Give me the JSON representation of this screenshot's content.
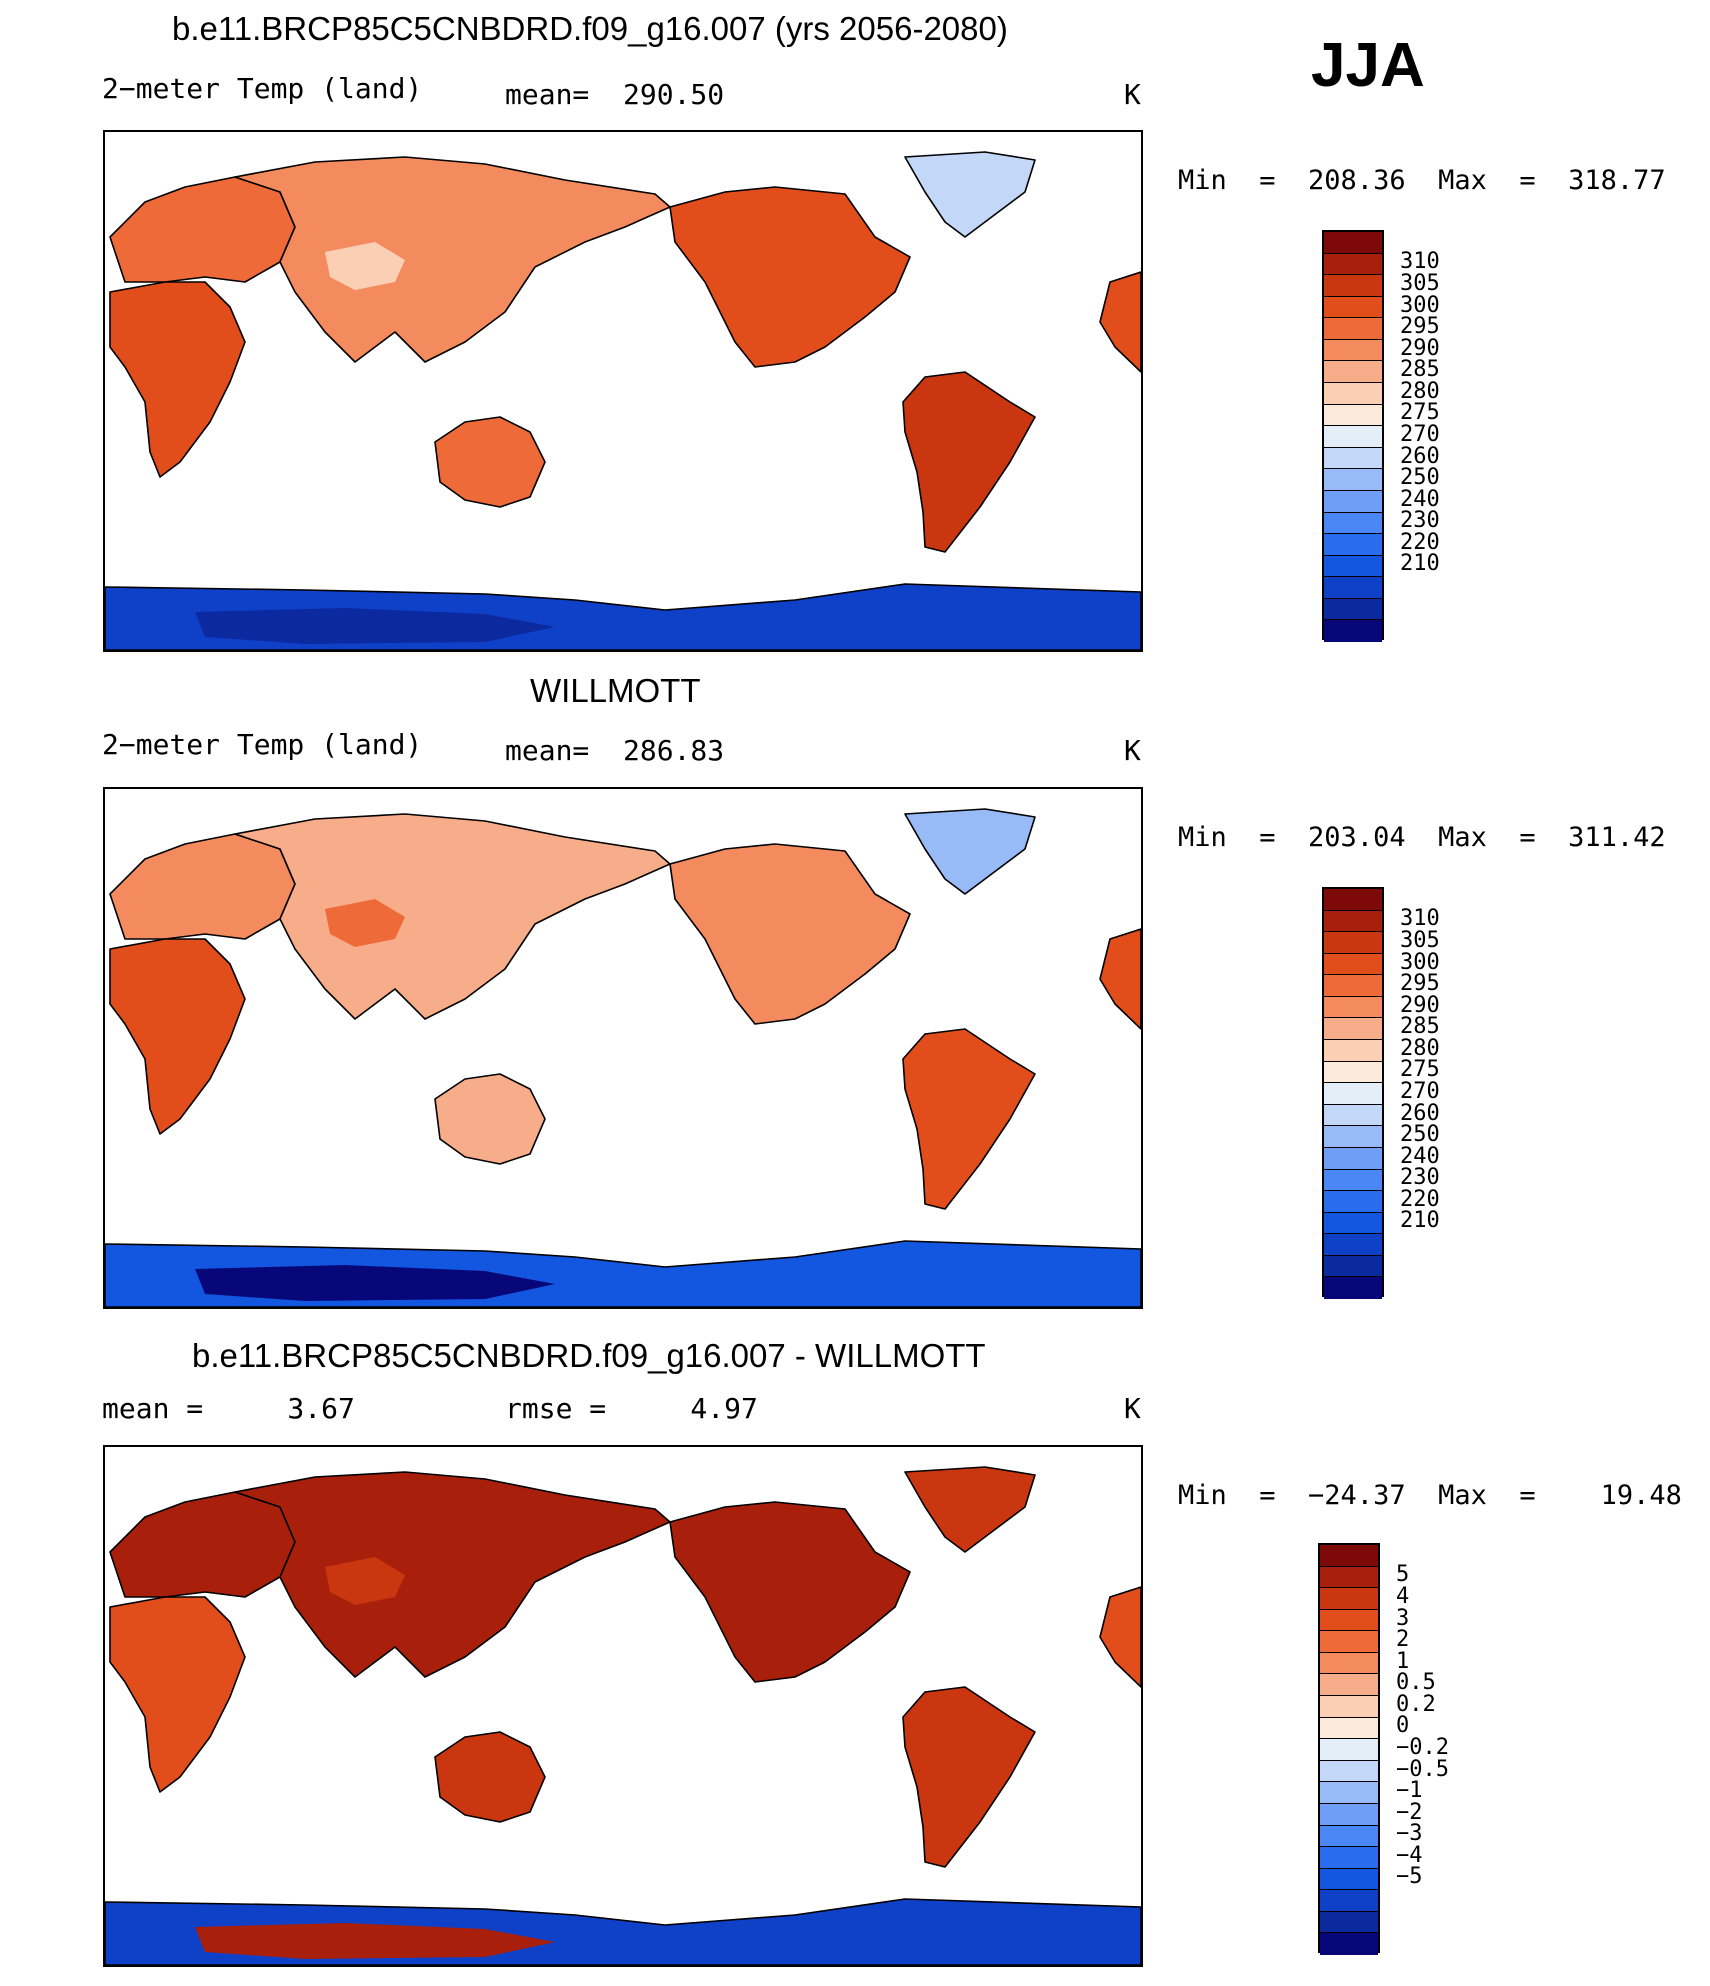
{
  "season": "JJA",
  "legend_colors": [
    "#07077a",
    "#0b2aa0",
    "#0f40c8",
    "#1356e0",
    "#2a6cf0",
    "#4a86f4",
    "#6e9ef6",
    "#98bbf8",
    "#c3d8f8",
    "#e3eef8",
    "#fbeadb",
    "#fbcfb4",
    "#f8ad8a",
    "#f48b5e",
    "#ee6a38",
    "#e24d1c",
    "#c93610",
    "#a8200b",
    "#7d0a08"
  ],
  "colors": {
    "ocean": "#ffffff",
    "coast": "#000000"
  },
  "panels": [
    {
      "title": "b.e11.BRCP85C5CNBDRD.f09_g16.007 (yrs 2056-2080)",
      "left_label": "2−meter Temp (land)",
      "center_label": "mean=  290.50",
      "units": "K",
      "minmax": "Min  =  208.36  Max  =  318.77",
      "colorbar_labels": [
        "310",
        "305",
        "300",
        "295",
        "290",
        "285",
        "280",
        "275",
        "270",
        "260",
        "250",
        "240",
        "230",
        "220",
        "210"
      ],
      "region_colors": {
        "north_america": "#e24d1c",
        "greenland": "#c3d8f8",
        "south_america": "#c93610",
        "africa": "#e24d1c",
        "europe": "#ee6a38",
        "asia": "#f48b5e",
        "tibet": "#fbcfb4",
        "australia": "#ee6a38",
        "antarctica": "#0f40c8",
        "antarctica_core": "#0b2aa0"
      }
    },
    {
      "title": "WILLMOTT",
      "left_label": "2−meter Temp (land)",
      "center_label": "mean=  286.83",
      "units": "K",
      "minmax": "Min  =  203.04  Max  =  311.42",
      "colorbar_labels": [
        "310",
        "305",
        "300",
        "295",
        "290",
        "285",
        "280",
        "275",
        "270",
        "260",
        "250",
        "240",
        "230",
        "220",
        "210"
      ],
      "region_colors": {
        "north_america": "#f48b5e",
        "greenland": "#98bbf8",
        "south_america": "#e24d1c",
        "africa": "#e24d1c",
        "europe": "#f48b5e",
        "asia": "#f8ad8a",
        "tibet": "#ee6a38",
        "australia": "#f8ad8a",
        "antarctica": "#1356e0",
        "antarctica_core": "#07077a"
      }
    },
    {
      "title": "b.e11.BRCP85C5CNBDRD.f09_g16.007 - WILLMOTT",
      "left_label": "mean =     3.67",
      "center_label": "rmse =     4.97",
      "units": "K",
      "minmax": "Min  =  −24.37  Max  =    19.48",
      "colorbar_labels": [
        "5",
        "4",
        "3",
        "2",
        "1",
        "0.5",
        "0.2",
        "0",
        "−0.2",
        "−0.5",
        "−1",
        "−2",
        "−3",
        "−4",
        "−5"
      ],
      "region_colors": {
        "north_america": "#a8200b",
        "greenland": "#c93610",
        "south_america": "#c93610",
        "africa": "#e24d1c",
        "europe": "#a8200b",
        "asia": "#a8200b",
        "tibet": "#c93610",
        "australia": "#c93610",
        "antarctica": "#0f40c8",
        "antarctica_core": "#a8200b"
      }
    }
  ]
}
